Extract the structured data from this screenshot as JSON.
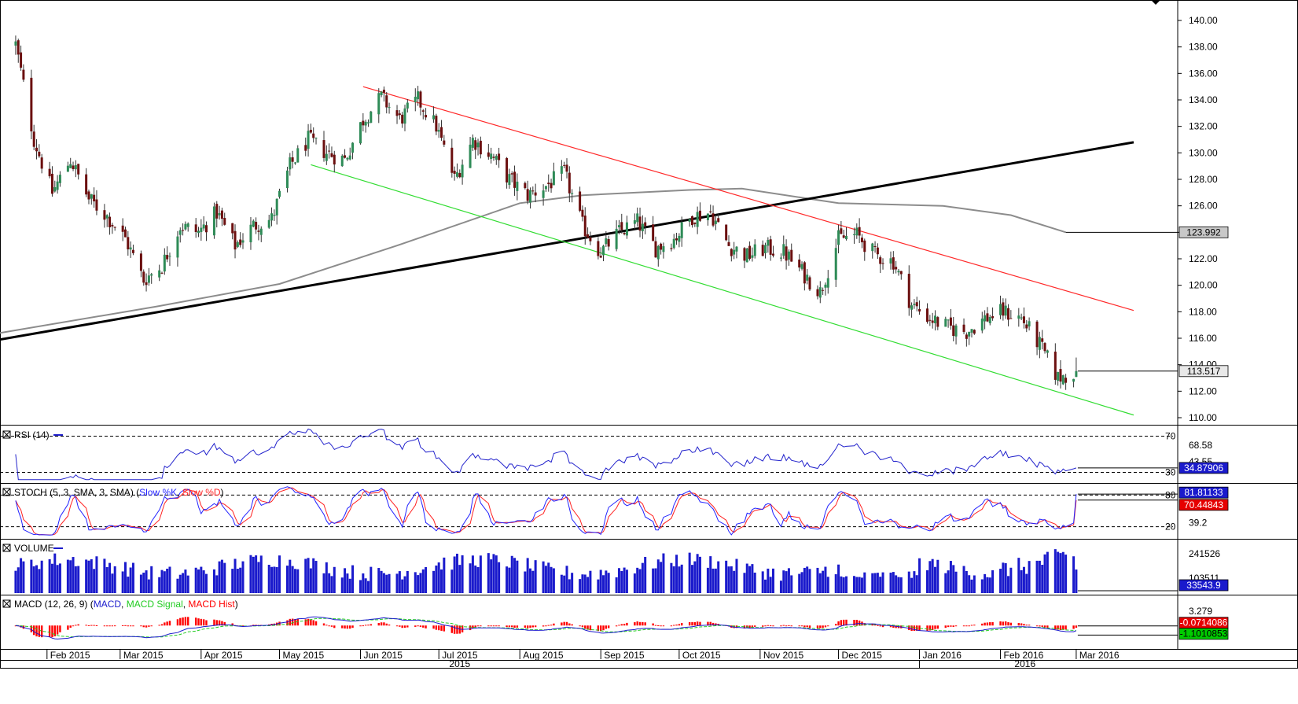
{
  "colors": {
    "bull": "#2e8b57",
    "bear": "#6b0f0f",
    "ma200": "#8c8c8c",
    "trendline": "#000000",
    "channel_upper": "#ff2a2a",
    "channel_lower": "#33dd33",
    "rsi": "#2222cc",
    "stoch_k": "#2222ff",
    "stoch_d": "#ff2222",
    "volume": "#1a1acc",
    "macd": "#1a1acc",
    "macd_signal": "#22cc22",
    "macd_hist": "#ff0000",
    "badge_blue": "#1a1acc",
    "badge_red": "#e60000",
    "badge_green": "#00cc00"
  },
  "chart_data": {
    "type": "candlestick",
    "instrument_hint": "daily price candles with indicators",
    "y_axis": {
      "min": 110,
      "max": 140,
      "ticks": [
        "140.00",
        "138.00",
        "136.00",
        "134.00",
        "132.00",
        "130.00",
        "128.00",
        "126.00",
        "124.00",
        "122.00",
        "120.00",
        "118.00",
        "116.00",
        "114.00",
        "112.00",
        "110.00"
      ]
    },
    "x_axis": {
      "months": [
        "Feb 2015",
        "Mar 2015",
        "Apr 2015",
        "May 2015",
        "Jun 2015",
        "Jul 2015",
        "Aug 2015",
        "Sep 2015",
        "Oct 2015",
        "Nov 2015",
        "Dec 2015",
        "Jan 2016",
        "Feb 2016",
        "Mar 2016"
      ],
      "years": [
        "2015",
        "2016"
      ]
    },
    "price_path": [
      [
        "2015-01-20",
        138.2
      ],
      [
        "2015-01-27",
        131.0
      ],
      [
        "2015-02-03",
        127.0
      ],
      [
        "2015-02-10",
        129.5
      ],
      [
        "2015-02-17",
        126.5
      ],
      [
        "2015-02-24",
        125.2
      ],
      [
        "2015-03-03",
        123.5
      ],
      [
        "2015-03-10",
        120.4
      ],
      [
        "2015-03-17",
        121.5
      ],
      [
        "2015-03-24",
        124.5
      ],
      [
        "2015-03-31",
        124.0
      ],
      [
        "2015-04-07",
        125.5
      ],
      [
        "2015-04-14",
        123.0
      ],
      [
        "2015-04-21",
        124.5
      ],
      [
        "2015-04-28",
        125.0
      ],
      [
        "2015-05-05",
        129.0
      ],
      [
        "2015-05-12",
        131.0
      ],
      [
        "2015-05-19",
        130.0
      ],
      [
        "2015-05-26",
        129.5
      ],
      [
        "2015-06-02",
        132.5
      ],
      [
        "2015-06-09",
        134.2
      ],
      [
        "2015-06-16",
        132.5
      ],
      [
        "2015-06-23",
        134.0
      ],
      [
        "2015-06-30",
        132.0
      ],
      [
        "2015-07-07",
        128.0
      ],
      [
        "2015-07-14",
        131.0
      ],
      [
        "2015-07-21",
        129.8
      ],
      [
        "2015-07-28",
        128.0
      ],
      [
        "2015-08-04",
        126.8
      ],
      [
        "2015-08-11",
        127.5
      ],
      [
        "2015-08-18",
        128.5
      ],
      [
        "2015-08-25",
        124.5
      ],
      [
        "2015-09-01",
        122.5
      ],
      [
        "2015-09-08",
        124.0
      ],
      [
        "2015-09-15",
        124.8
      ],
      [
        "2015-09-22",
        122.8
      ],
      [
        "2015-09-29",
        123.5
      ],
      [
        "2015-10-06",
        125.2
      ],
      [
        "2015-10-13",
        125.5
      ],
      [
        "2015-10-20",
        123.0
      ],
      [
        "2015-10-27",
        122.2
      ],
      [
        "2015-11-03",
        122.8
      ],
      [
        "2015-11-10",
        122.5
      ],
      [
        "2015-11-17",
        121.0
      ],
      [
        "2015-11-24",
        119.5
      ],
      [
        "2015-12-01",
        123.5
      ],
      [
        "2015-12-08",
        123.8
      ],
      [
        "2015-12-15",
        122.3
      ],
      [
        "2015-12-22",
        121.8
      ],
      [
        "2015-12-29",
        118.5
      ],
      [
        "2016-01-05",
        117.5
      ],
      [
        "2016-01-12",
        116.8
      ],
      [
        "2016-01-19",
        116.5
      ],
      [
        "2016-01-26",
        117.5
      ],
      [
        "2016-02-02",
        118.0
      ],
      [
        "2016-02-09",
        117.5
      ],
      [
        "2016-02-16",
        115.5
      ],
      [
        "2016-02-23",
        113.0
      ],
      [
        "2016-03-01",
        113.52
      ]
    ],
    "last_price": "113.517",
    "ma_label": "123.992",
    "indicators": {
      "rsi": {
        "title": "RSI (14)",
        "levels": [
          "70",
          "30"
        ],
        "scale_label": "68.58",
        "extra_label": "43.55",
        "value": "34.87906"
      },
      "stoch": {
        "title_prefix": "STOCH (5, 3, SMA, 3, SMA)",
        "k_label": "Slow %K",
        "d_label": "Slow %D",
        "levels": [
          "80",
          "20"
        ],
        "scale_label": "39.2",
        "k_value": "81.81133",
        "d_value": "70.44843"
      },
      "volume": {
        "title": "VOLUME",
        "scale_labels": [
          "241526",
          "103511"
        ],
        "value": "33543.9"
      },
      "macd": {
        "title_prefix": "MACD (12, 26, 9)",
        "line_label": "MACD",
        "signal_label": "MACD Signal",
        "hist_label": "MACD Hist",
        "scale_label": "3.279",
        "hist_value": "-0.0714086",
        "macd_value": "-1.1010853"
      }
    }
  }
}
